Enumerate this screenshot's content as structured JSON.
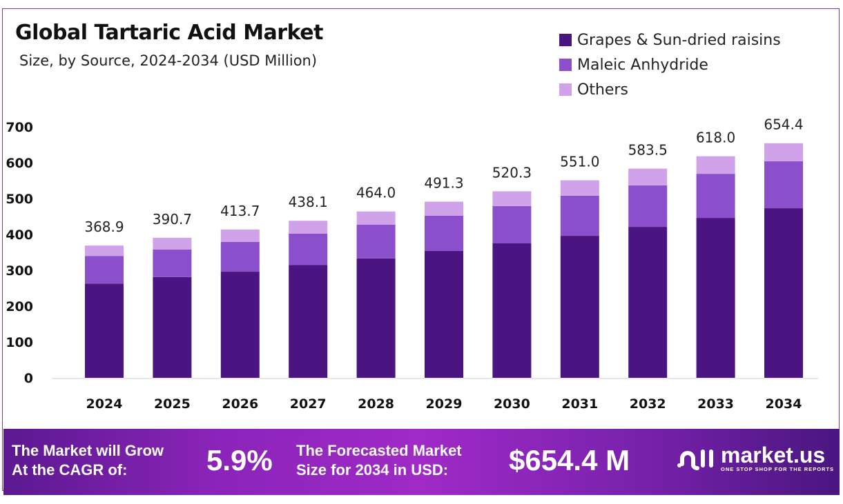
{
  "chart_data": {
    "type": "bar",
    "stacked": true,
    "title": "Global Tartaric Acid Market",
    "subtitle": "Size, by Source, 2024-2034 (USD Million)",
    "categories": [
      "2024",
      "2025",
      "2026",
      "2027",
      "2028",
      "2029",
      "2030",
      "2031",
      "2032",
      "2033",
      "2034"
    ],
    "series": [
      {
        "name": "Grapes & Sun-dried raisins",
        "color": "#4b1581",
        "values": [
          263,
          281,
          296,
          315,
          333,
          354,
          375,
          396,
          421,
          446,
          473
        ]
      },
      {
        "name": "Maleic Anhydride",
        "color": "#8b4fcc",
        "values": [
          77,
          77,
          83,
          87,
          94,
          98,
          104,
          112,
          116,
          123,
          131
        ]
      },
      {
        "name": "Others",
        "color": "#cfa2ea",
        "values": [
          28.9,
          32.7,
          34.7,
          36.1,
          37.0,
          39.3,
          41.3,
          43.0,
          46.5,
          49.0,
          50.4
        ]
      }
    ],
    "totals": [
      "368.9",
      "390.7",
      "413.7",
      "438.1",
      "464.0",
      "491.3",
      "520.3",
      "551.0",
      "583.5",
      "618.0",
      "654.4"
    ],
    "yticks": [
      "0",
      "100",
      "200",
      "300",
      "400",
      "500",
      "600",
      "700"
    ],
    "ylim": [
      0,
      700
    ],
    "grid": false,
    "legend": "top-right"
  },
  "banner": {
    "cagr_label_1": "The Market will Grow",
    "cagr_label_2": "At the CAGR of:",
    "cagr_value": "5.9%",
    "forecast_label_1": "The Forecasted Market",
    "forecast_label_2": "Size for 2034 in USD:",
    "forecast_value": "$654.4 M",
    "logo_name": "market.us",
    "logo_tagline": "ONE STOP SHOP FOR THE REPORTS"
  }
}
